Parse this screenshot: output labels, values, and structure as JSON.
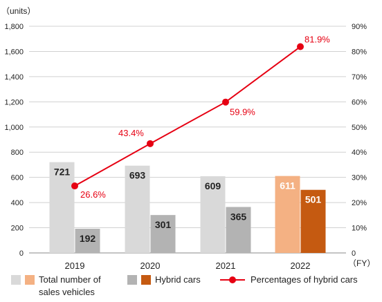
{
  "chart_data": {
    "type": "bar",
    "units_label": "（units）",
    "fy_label": "（FY）",
    "categories": [
      "2019",
      "2020",
      "2021",
      "2022"
    ],
    "y_left": {
      "ylim": [
        0,
        1800
      ],
      "ticks": [
        0,
        200,
        400,
        600,
        800,
        1000,
        1200,
        1400,
        1600,
        1800
      ],
      "tick_labels": [
        "0",
        "200",
        "400",
        "600",
        "800",
        "1,000",
        "1,200",
        "1,400",
        "1,600",
        "1,800"
      ]
    },
    "y_right": {
      "ylim": [
        0,
        90
      ],
      "ticks": [
        0,
        10,
        20,
        30,
        40,
        50,
        60,
        70,
        80,
        90
      ],
      "tick_labels": [
        "0",
        "10%",
        "20%",
        "30%",
        "40%",
        "50%",
        "60%",
        "70%",
        "80%",
        "90%"
      ]
    },
    "series": [
      {
        "name": "Total number of sales vehicles",
        "values": [
          721,
          693,
          609,
          611
        ],
        "labels": [
          "721",
          "693",
          "609",
          "611"
        ],
        "colors": [
          "#d9d9d9",
          "#d9d9d9",
          "#d9d9d9",
          "#f4b183"
        ],
        "label_colors": [
          "#222222",
          "#222222",
          "#222222",
          "#ffffff"
        ]
      },
      {
        "name": "Hybrid cars",
        "values": [
          192,
          301,
          365,
          501
        ],
        "labels": [
          "192",
          "301",
          "365",
          "501"
        ],
        "colors": [
          "#b3b3b3",
          "#b3b3b3",
          "#b3b3b3",
          "#c55a11"
        ],
        "label_colors": [
          "#222222",
          "#222222",
          "#222222",
          "#ffffff"
        ]
      },
      {
        "name": "Percentages of hybrid cars",
        "type": "line",
        "axis": "right",
        "values": [
          26.6,
          43.4,
          59.9,
          81.9
        ],
        "labels": [
          "26.6%",
          "43.4%",
          "59.9%",
          "81.9%"
        ],
        "color": "#e60012"
      }
    ],
    "legend": {
      "position": "bottom",
      "items": [
        {
          "text_line1": "Total number of",
          "text_line2": "sales vehicles",
          "swatch_colors": [
            "#d9d9d9",
            "#f4b183"
          ]
        },
        {
          "text_line1": "Hybrid cars",
          "swatch_colors": [
            "#b3b3b3",
            "#c55a11"
          ]
        },
        {
          "text_line1": "Percentages of hybrid cars",
          "swatch_color": "#e60012"
        }
      ]
    },
    "grid": true,
    "grid_color": "#d0d0d0"
  }
}
